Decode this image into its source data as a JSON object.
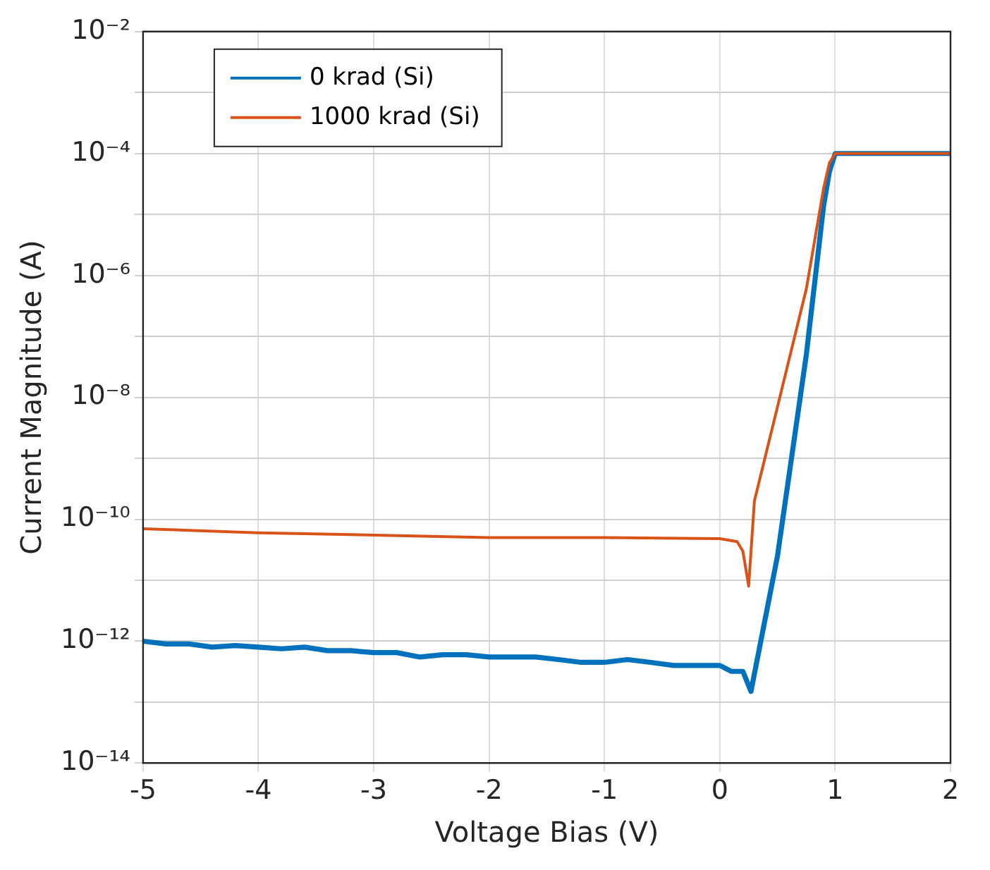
{
  "chart_data": {
    "type": "line",
    "xlabel": "Voltage Bias (V)",
    "ylabel": "Current Magnitude (A)",
    "log": "y",
    "grid": true,
    "legend": "top left",
    "marker": "none",
    "line_style": "solid",
    "xlim": [
      -5,
      2
    ],
    "xticks": [
      -5,
      -4,
      -3,
      -2,
      -1,
      0,
      1,
      2
    ],
    "ylim": [
      1e-14,
      0.01
    ],
    "yticks": [
      {
        "value": 1e-14,
        "label": "10⁻¹⁴"
      },
      {
        "value": 1e-13,
        "label": null
      },
      {
        "value": 1e-12,
        "label": "10⁻¹²"
      },
      {
        "value": 1e-11,
        "label": null
      },
      {
        "value": 1e-10,
        "label": "10⁻¹⁰"
      },
      {
        "value": 1e-09,
        "label": null
      },
      {
        "value": 1e-08,
        "label": "10⁻⁸"
      },
      {
        "value": 1e-07,
        "label": null
      },
      {
        "value": 1e-06,
        "label": "10⁻⁶"
      },
      {
        "value": 1e-05,
        "label": null
      },
      {
        "value": 0.0001,
        "label": "10⁻⁴"
      },
      {
        "value": 0.001,
        "label": null
      },
      {
        "value": 0.01,
        "label": "10⁻²"
      }
    ],
    "series": [
      {
        "name": "0 krad (Si)",
        "color": "#0072bd",
        "x": [
          -5,
          -4.8,
          -4.6,
          -4.4,
          -4.2,
          -4,
          -3.8,
          -3.6,
          -3.4,
          -3.2,
          -3,
          -2.8,
          -2.6,
          -2.4,
          -2.2,
          -2,
          -1.8,
          -1.6,
          -1.4,
          -1.2,
          -1,
          -0.8,
          -0.6,
          -0.4,
          -0.2,
          0,
          0.1,
          0.2,
          0.27,
          0.5,
          0.75,
          0.9,
          0.95,
          1,
          1.5,
          2
        ],
        "values": [
          1e-12,
          9e-13,
          9e-13,
          8e-13,
          8.5e-13,
          8e-13,
          7.5e-13,
          8e-13,
          7e-13,
          7e-13,
          6.5e-13,
          6.5e-13,
          5.5e-13,
          6e-13,
          6e-13,
          5.5e-13,
          5.5e-13,
          5.5e-13,
          5e-13,
          4.5e-13,
          4.5e-13,
          5e-13,
          4.5e-13,
          4e-13,
          4e-13,
          4e-13,
          3.2e-13,
          3.2e-13,
          1.5e-13,
          2.5e-11,
          5e-08,
          1.4e-05,
          5e-05,
          0.0001,
          0.0001,
          0.0001
        ]
      },
      {
        "name": "1000 krad (Si)",
        "color": "#d95319",
        "x": [
          -5,
          -4,
          -3,
          -2,
          -1,
          0,
          0.15,
          0.2,
          0.25,
          0.3,
          0.5,
          0.75,
          0.9,
          0.95,
          1,
          1.5,
          2
        ],
        "values": [
          7e-11,
          6e-11,
          5.5e-11,
          5e-11,
          5e-11,
          4.8e-11,
          4.3e-11,
          3e-11,
          8e-12,
          2e-10,
          7e-09,
          6e-07,
          2.7e-05,
          7e-05,
          0.0001,
          0.0001,
          0.0001
        ]
      }
    ]
  }
}
